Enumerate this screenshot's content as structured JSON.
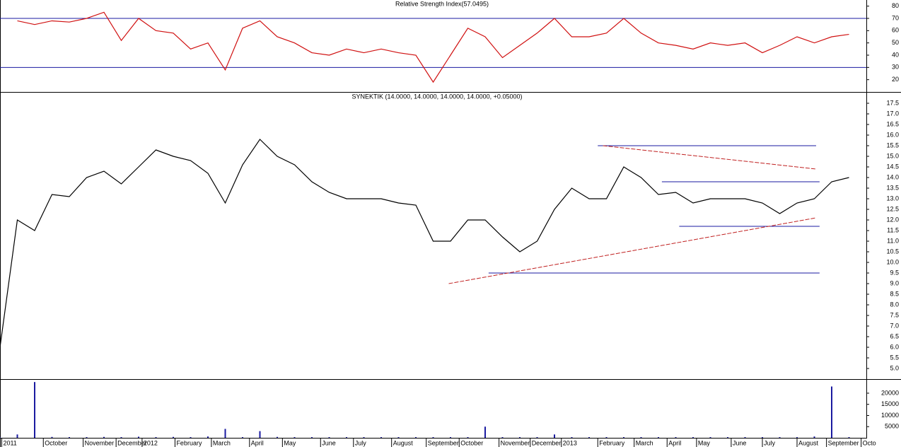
{
  "chart_data": [
    {
      "type": "line",
      "title": "Relative Strength Index(57.0495)",
      "series": [
        {
          "color": "#d01010",
          "values": [
            null,
            68,
            65,
            68,
            67,
            70,
            75,
            52,
            70,
            60,
            58,
            45,
            50,
            28,
            62,
            68,
            55,
            50,
            42,
            40,
            45,
            42,
            45,
            42,
            40,
            18,
            40,
            62,
            55,
            38,
            48,
            58,
            70,
            55,
            55,
            58,
            70,
            58,
            50,
            48,
            45,
            50,
            48,
            50,
            42,
            48,
            55,
            50,
            55,
            57
          ]
        }
      ],
      "ylim": [
        10,
        85
      ],
      "yticks": [
        20,
        30,
        40,
        50,
        60,
        70,
        80
      ],
      "hlines": [
        70,
        30
      ],
      "hline_color": "#1a1aa0"
    },
    {
      "type": "line",
      "title": "SYNEKTIK (14.0000, 14.0000, 14.0000, 14.0000, +0.05000)",
      "series": [
        {
          "color": "#000000",
          "values": [
            6.0,
            12.0,
            11.5,
            13.2,
            13.1,
            14.0,
            14.3,
            13.7,
            14.5,
            15.3,
            15.0,
            14.8,
            14.2,
            12.8,
            14.6,
            15.8,
            15.0,
            14.6,
            13.8,
            13.3,
            13.0,
            13.0,
            13.0,
            12.8,
            12.7,
            11.0,
            11.0,
            12.0,
            12.0,
            11.2,
            10.5,
            11.0,
            12.5,
            13.5,
            13.0,
            13.0,
            14.5,
            14.0,
            13.2,
            13.3,
            12.8,
            13.0,
            13.0,
            13.0,
            12.8,
            12.3,
            12.8,
            13.0,
            13.8,
            14.0
          ]
        }
      ],
      "ylim": [
        4.5,
        18.0
      ],
      "yticks": [
        {
          "value": 5.0,
          "label": "5.0"
        },
        {
          "value": 5.5,
          "label": "5.5"
        },
        {
          "value": 6.0,
          "label": "6.0"
        },
        {
          "value": 6.5,
          "label": "6.5"
        },
        {
          "value": 7.0,
          "label": "7.0"
        },
        {
          "value": 7.5,
          "label": "7.5"
        },
        {
          "value": 8.0,
          "label": "8.0"
        },
        {
          "value": 8.5,
          "label": "8.5"
        },
        {
          "value": 9.0,
          "label": "9.0"
        },
        {
          "value": 9.5,
          "label": "9.5"
        },
        {
          "value": 10.0,
          "label": "10.0"
        },
        {
          "value": 10.5,
          "label": "10.5"
        },
        {
          "value": 11.0,
          "label": "11.0"
        },
        {
          "value": 11.5,
          "label": "11.5"
        },
        {
          "value": 12.0,
          "label": "12.0"
        },
        {
          "value": 12.5,
          "label": "12.5"
        },
        {
          "value": 13.0,
          "label": "13.0"
        },
        {
          "value": 13.5,
          "label": "13.5"
        },
        {
          "value": 14.0,
          "label": "14.0"
        },
        {
          "value": 14.5,
          "label": "14.5"
        },
        {
          "value": 15.0,
          "label": "15.0"
        },
        {
          "value": 15.5,
          "label": "15.5"
        },
        {
          "value": 16.0,
          "label": "16.0"
        },
        {
          "value": 16.5,
          "label": "16.5"
        },
        {
          "value": 17.0,
          "label": "17.0"
        },
        {
          "value": 17.5,
          "label": "17.5"
        }
      ],
      "trendlines": [
        {
          "x": [
            34.5,
            47.1
          ],
          "y": [
            15.5,
            15.5
          ],
          "color": "#1a1aa0"
        },
        {
          "x": [
            38.2,
            47.3
          ],
          "y": [
            13.8,
            13.8
          ],
          "color": "#1a1aa0"
        },
        {
          "x": [
            39.2,
            47.3
          ],
          "y": [
            11.7,
            11.7
          ],
          "color": "#1a1aa0"
        },
        {
          "x": [
            28.2,
            47.3
          ],
          "y": [
            9.5,
            9.5
          ],
          "color": "#1a1aa0"
        },
        {
          "x": [
            25.9,
            47.1
          ],
          "y": [
            9.0,
            12.1
          ],
          "color": "#c02020"
        },
        {
          "x": [
            34.8,
            47.1
          ],
          "y": [
            15.5,
            14.4
          ],
          "color": "#c02020"
        }
      ]
    },
    {
      "type": "bar",
      "series": [
        {
          "color": "#1a1aa0",
          "values": [
            300,
            1500,
            25000,
            400,
            300,
            300,
            400,
            300,
            500,
            300,
            400,
            300,
            600,
            4000,
            300,
            3000,
            400,
            300,
            300,
            300,
            300,
            300,
            300,
            300,
            300,
            300,
            300,
            300,
            5000,
            300,
            300,
            300,
            1500,
            300,
            300,
            300,
            300,
            300,
            300,
            300,
            300,
            300,
            300,
            300,
            300,
            300,
            300,
            600,
            23000,
            300
          ]
        }
      ],
      "ylim": [
        0,
        26000
      ],
      "yticks": [
        5000,
        10000,
        15000,
        20000
      ],
      "xlim": [
        0,
        50
      ],
      "xticks": [
        {
          "value": 0.1,
          "label": "2011"
        },
        {
          "value": 2.5,
          "label": "October"
        },
        {
          "value": 4.8,
          "label": "November"
        },
        {
          "value": 6.7,
          "label": "December"
        },
        {
          "value": 8.2,
          "label": "2012"
        },
        {
          "value": 10.1,
          "label": "February"
        },
        {
          "value": 12.2,
          "label": "March"
        },
        {
          "value": 14.4,
          "label": "April"
        },
        {
          "value": 16.3,
          "label": "May"
        },
        {
          "value": 18.5,
          "label": "June"
        },
        {
          "value": 20.4,
          "label": "July"
        },
        {
          "value": 22.6,
          "label": "August"
        },
        {
          "value": 24.6,
          "label": "September"
        },
        {
          "value": 26.5,
          "label": "October"
        },
        {
          "value": 28.8,
          "label": "November"
        },
        {
          "value": 30.6,
          "label": "December"
        },
        {
          "value": 32.4,
          "label": "2013"
        },
        {
          "value": 34.5,
          "label": "February"
        },
        {
          "value": 36.6,
          "label": "March"
        },
        {
          "value": 38.5,
          "label": "April"
        },
        {
          "value": 40.2,
          "label": "May"
        },
        {
          "value": 42.2,
          "label": "June"
        },
        {
          "value": 44.0,
          "label": "July"
        },
        {
          "value": 46.0,
          "label": "August"
        },
        {
          "value": 47.7,
          "label": "September"
        },
        {
          "value": 49.7,
          "label": "Octo"
        }
      ]
    }
  ]
}
